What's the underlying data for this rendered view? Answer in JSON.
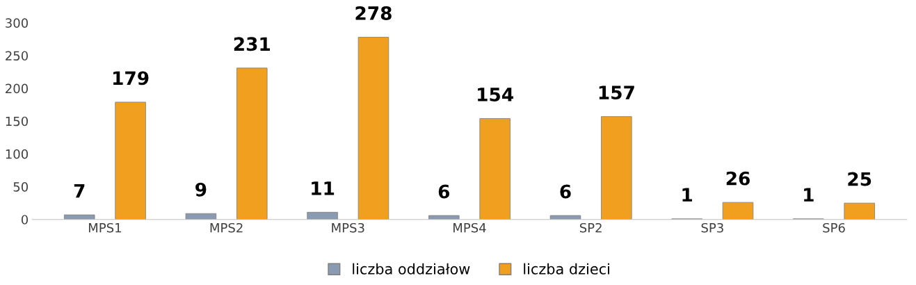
{
  "chart_data": {
    "type": "bar",
    "categories": [
      "MPS1",
      "MPS2",
      "MPS3",
      "MPS4",
      "SP2",
      "SP3",
      "SP6"
    ],
    "series": [
      {
        "name": "liczba oddziałow",
        "color": "#8a9ab0",
        "values": [
          7,
          9,
          11,
          6,
          6,
          1,
          1
        ]
      },
      {
        "name": "liczba dzieci",
        "color": "#f0a01e",
        "values": [
          179,
          231,
          278,
          154,
          157,
          26,
          25
        ]
      }
    ],
    "ylim": [
      0,
      300
    ],
    "yticks": [
      0,
      50,
      100,
      150,
      200,
      250,
      300
    ],
    "grid": false,
    "legend": "bottom",
    "data_labels": true
  }
}
